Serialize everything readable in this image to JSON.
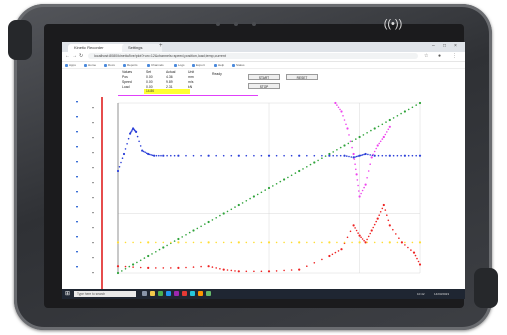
{
  "browser": {
    "tabs": [
      {
        "label": "Kinetic Recorder"
      },
      {
        "label": "Settings"
      }
    ],
    "address": "localhost:8080/kinetic/live/plot?run=12&channels=speed,position,load,temp,current",
    "bookmarks": [
      "Apps",
      "Home",
      "Docs",
      "Reports",
      "Channels",
      "Logs",
      "Export",
      "Help",
      "Status"
    ]
  },
  "panel": {
    "labels": [
      "Values",
      "Set",
      "Actual",
      "Unit"
    ],
    "rows": [
      [
        "Pos",
        "0.00",
        "4.36",
        "mm"
      ],
      [
        "Speed",
        "0.00",
        "9.89",
        "m/s"
      ],
      [
        "Load",
        "0.00",
        "2.31",
        "kN"
      ]
    ],
    "field_value": "14.86",
    "status_label": "Ready",
    "buttons": [
      "START",
      "STOP",
      "RESET"
    ]
  },
  "taskbar": {
    "search_placeholder": "Type here to search",
    "clock": "10:42",
    "date": "14/03/2023"
  },
  "colors": {
    "green": "#2fa33a",
    "blue": "#2b3fd8",
    "magenta": "#ee44ee",
    "red": "#ee2222",
    "yellow": "#ffdd33",
    "axis_red": "#e02020"
  },
  "chart_data": {
    "type": "scatter",
    "xlim": [
      0,
      100
    ],
    "ylim": [
      0,
      100
    ],
    "grid": true,
    "series": [
      {
        "color": "green",
        "x": [
          0,
          5,
          10,
          15,
          20,
          25,
          30,
          35,
          40,
          45,
          50,
          55,
          60,
          65,
          70,
          75,
          80,
          85,
          90,
          95,
          100
        ],
        "y": [
          0,
          5,
          10,
          15,
          20,
          25,
          30,
          35,
          40,
          45,
          50,
          55,
          60,
          65,
          70,
          75,
          80,
          85,
          90,
          95,
          100
        ]
      },
      {
        "color": "blue",
        "x": [
          0,
          2,
          4,
          5,
          6,
          8,
          10,
          12,
          15,
          20,
          30,
          40,
          50,
          60,
          70,
          75,
          78,
          80,
          82,
          85,
          90,
          95,
          100
        ],
        "y": [
          60,
          70,
          82,
          85,
          83,
          72,
          70,
          69,
          69,
          69,
          69,
          69,
          69,
          69,
          69,
          69,
          68,
          69,
          70,
          69,
          69,
          69,
          69
        ]
      },
      {
        "color": "magenta",
        "x": [
          72,
          74,
          76,
          78,
          79,
          80,
          82,
          84,
          86,
          88,
          90
        ],
        "y": [
          100,
          95,
          85,
          70,
          58,
          45,
          52,
          68,
          75,
          80,
          86
        ]
      },
      {
        "color": "red",
        "x": [
          0,
          10,
          20,
          30,
          35,
          40,
          50,
          60,
          70,
          74,
          78,
          80,
          82,
          84,
          86,
          88,
          90,
          94,
          98,
          100
        ],
        "y": [
          4,
          3,
          3,
          4,
          2,
          1,
          1,
          2,
          10,
          14,
          28,
          22,
          18,
          25,
          32,
          40,
          28,
          18,
          12,
          5
        ]
      },
      {
        "color": "yellow",
        "x": [
          0,
          10,
          20,
          30,
          40,
          50,
          60,
          70,
          80,
          90,
          100
        ],
        "y": [
          18,
          18,
          18,
          18,
          18,
          18,
          18,
          18,
          18,
          18,
          18
        ]
      }
    ]
  }
}
